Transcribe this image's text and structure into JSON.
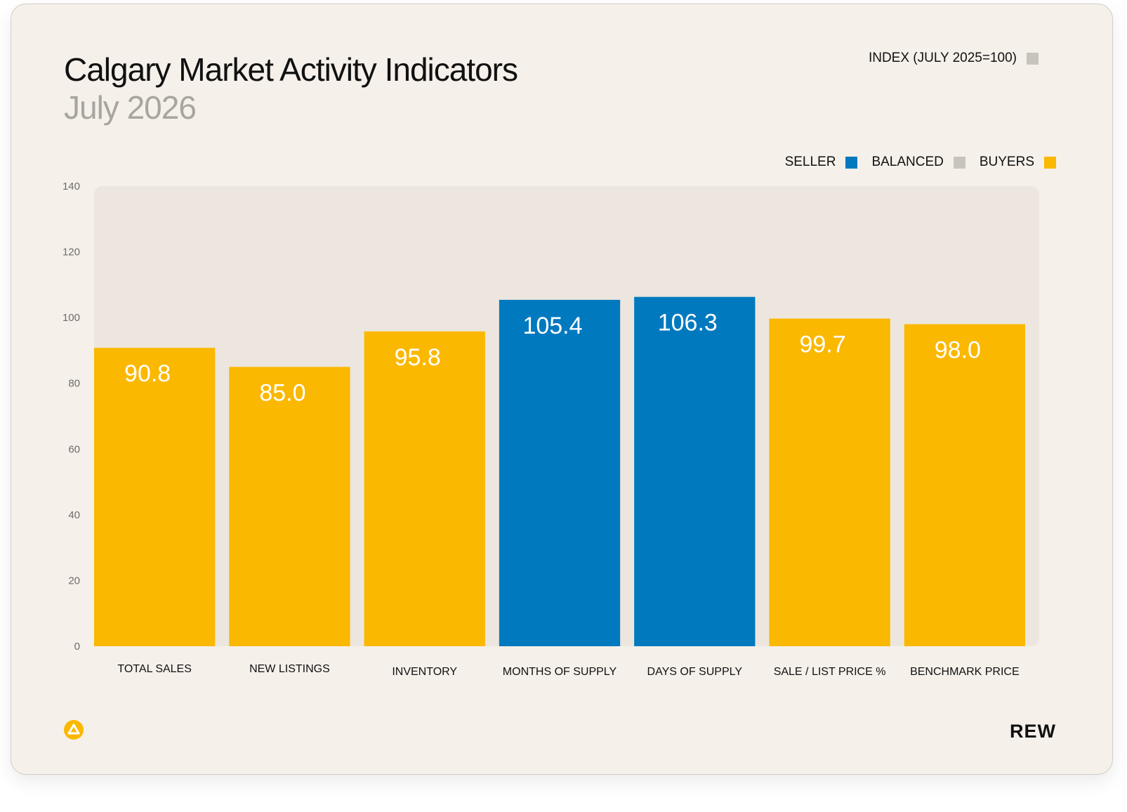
{
  "header": {
    "title": "Calgary Market Activity Indicators",
    "subtitle": "July 2026"
  },
  "index_legend": {
    "label": "INDEX (JULY 2025=100)",
    "color": "#c7c3bd"
  },
  "legend": [
    {
      "label": "SELLER",
      "color": "#0079bf"
    },
    {
      "label": "BALANCED",
      "color": "#c7c3bd"
    },
    {
      "label": "BUYERS",
      "color": "#fbb800"
    }
  ],
  "chart_data": {
    "type": "bar",
    "categories": [
      "TOTAL SALES",
      "NEW LISTINGS",
      "INVENTORY",
      "MONTHS OF SUPPLY",
      "DAYS OF SUPPLY",
      "SALE / LIST PRICE %",
      "BENCHMARK PRICE"
    ],
    "values": [
      90.8,
      85.0,
      95.8,
      105.4,
      106.3,
      99.7,
      98.0
    ],
    "labels": [
      "90.8",
      "85.0",
      "95.8",
      "105.4",
      "106.3",
      "99.7",
      "98.0"
    ],
    "bar_market": [
      "BUYERS",
      "BUYERS",
      "BUYERS",
      "SELLER",
      "SELLER",
      "BUYERS",
      "BUYERS"
    ],
    "ylim": [
      0,
      140
    ],
    "yticks": [
      0,
      20,
      40,
      60,
      80,
      100,
      120,
      140
    ],
    "grid": false,
    "legend_position": "top-right"
  },
  "brand": {
    "wordmark": "REW",
    "logo_icon": "rew-triangle-logo-icon",
    "logo_color": "#fbb800"
  },
  "colors": {
    "card_background": "#f5f0ea",
    "plot_background": "#ece6df"
  }
}
